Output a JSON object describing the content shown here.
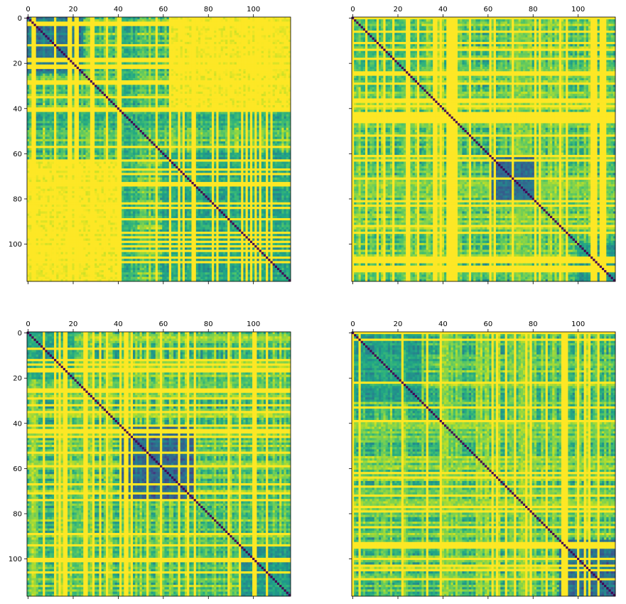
{
  "chart_data": [
    {
      "type": "heatmap",
      "size": 117,
      "xticks": [
        0,
        20,
        40,
        60,
        80,
        100
      ],
      "yticks": [
        0,
        20,
        40,
        60,
        80,
        100
      ],
      "xtick_labels": [
        "0",
        "20",
        "40",
        "60",
        "80",
        "100"
      ],
      "ytick_labels": [
        "0",
        "20",
        "40",
        "60",
        "80",
        "100"
      ],
      "xlim": [
        0,
        116
      ],
      "ylim": [
        116,
        0
      ],
      "colormap": "viridis",
      "diagonal_value": 0,
      "blocks": [
        {
          "rows": [
            0,
            24
          ],
          "cols": [
            0,
            24
          ],
          "value": 0.28
        },
        {
          "rows": [
            0,
            40
          ],
          "cols": [
            64,
            116
          ],
          "value": 1.0
        },
        {
          "rows": [
            64,
            116
          ],
          "cols": [
            0,
            38
          ],
          "value": 1.0
        },
        {
          "rows": [
            40,
            48
          ],
          "cols": [
            0,
            116
          ],
          "value": 0.5
        },
        {
          "rows": [
            0,
            116
          ],
          "cols": [
            40,
            48
          ],
          "value": 0.5
        },
        {
          "rows": [
            60,
            116
          ],
          "cols": [
            60,
            116
          ],
          "value": 0.45
        }
      ]
    },
    {
      "type": "heatmap",
      "size": 117,
      "xticks": [
        0,
        20,
        40,
        60,
        80,
        100
      ],
      "yticks": [
        0,
        20,
        40,
        60,
        80,
        100
      ],
      "xtick_labels": [
        "0",
        "20",
        "40",
        "60",
        "80",
        "100"
      ],
      "ytick_labels": [
        "",
        "",
        "",
        "",
        "",
        ""
      ],
      "xlim": [
        0,
        116
      ],
      "ylim": [
        116,
        0
      ],
      "colormap": "viridis",
      "diagonal_value": 0,
      "blocks": [
        {
          "rows": [
            62,
            80
          ],
          "cols": [
            62,
            80
          ],
          "value": 0.2
        },
        {
          "rows": [
            100,
            116
          ],
          "cols": [
            100,
            116
          ],
          "value": 0.4
        },
        {
          "rows": [
            0,
            30
          ],
          "cols": [
            0,
            30
          ],
          "value": 0.55
        }
      ]
    },
    {
      "type": "heatmap",
      "size": 117,
      "xticks": [
        0,
        20,
        40,
        60,
        80,
        100
      ],
      "yticks": [
        0,
        20,
        40,
        60,
        80,
        100
      ],
      "xtick_labels": [
        "0",
        "20",
        "40",
        "60",
        "80",
        "100"
      ],
      "ytick_labels": [
        "0",
        "20",
        "40",
        "60",
        "80",
        "100"
      ],
      "xlim": [
        0,
        116
      ],
      "ylim": [
        116,
        0
      ],
      "colormap": "viridis",
      "diagonal_value": 0,
      "blocks": [
        {
          "rows": [
            42,
            74
          ],
          "cols": [
            42,
            74
          ],
          "value": 0.2
        },
        {
          "rows": [
            95,
            116
          ],
          "cols": [
            95,
            116
          ],
          "value": 0.4
        },
        {
          "rows": [
            0,
            20
          ],
          "cols": [
            0,
            20
          ],
          "value": 0.45
        }
      ]
    },
    {
      "type": "heatmap",
      "size": 117,
      "xticks": [
        0,
        20,
        40,
        60,
        80,
        100
      ],
      "yticks": [
        0,
        20,
        40,
        60,
        80,
        100
      ],
      "xtick_labels": [
        "0",
        "20",
        "40",
        "60",
        "80",
        "100"
      ],
      "ytick_labels": [
        "",
        "",
        "",
        "",
        "",
        ""
      ],
      "xlim": [
        0,
        116
      ],
      "ylim": [
        116,
        0
      ],
      "colormap": "viridis",
      "diagonal_value": 0,
      "blocks": [
        {
          "rows": [
            0,
            30
          ],
          "cols": [
            0,
            30
          ],
          "value": 0.45
        },
        {
          "rows": [
            92,
            116
          ],
          "cols": [
            92,
            116
          ],
          "value": 0.25
        }
      ]
    }
  ]
}
